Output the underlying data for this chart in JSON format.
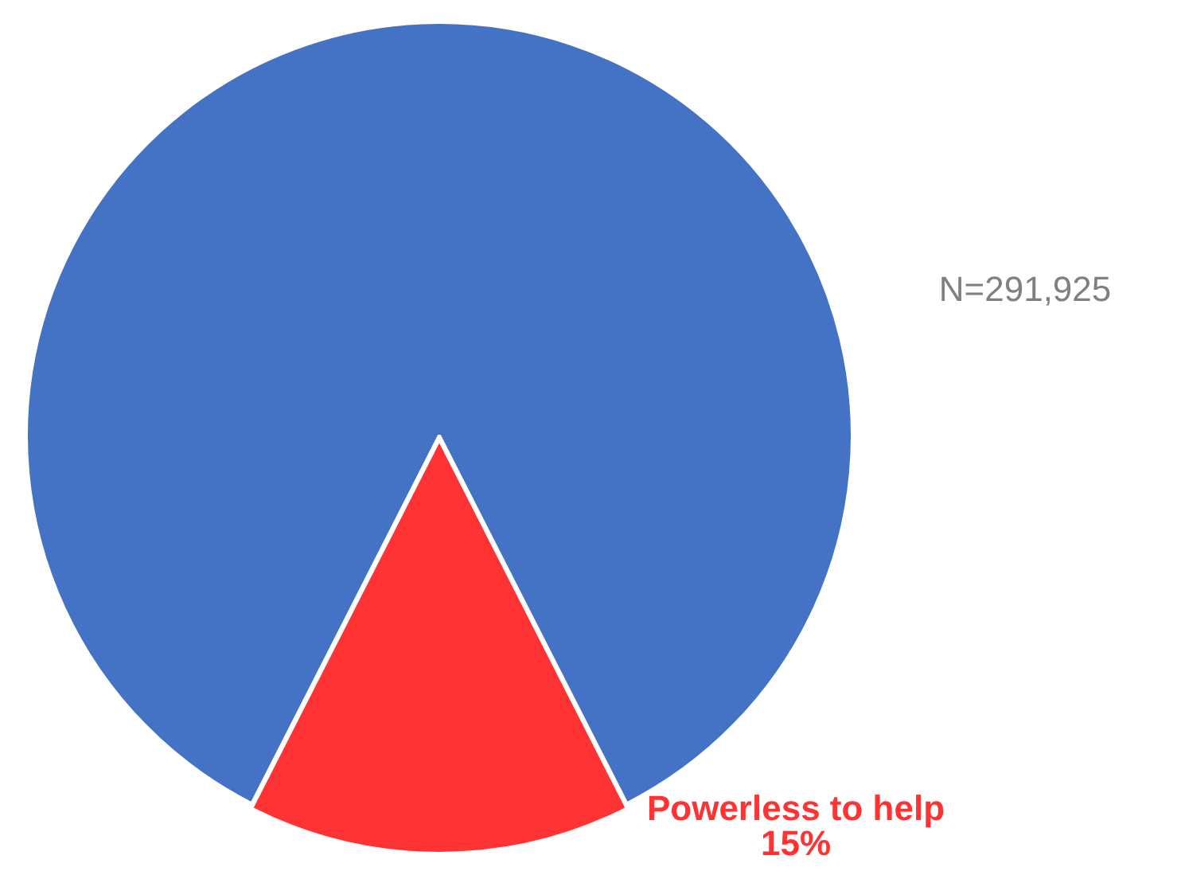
{
  "chart_data": {
    "type": "pie",
    "categories": [
      null,
      "Powerless to help"
    ],
    "values": [
      85,
      15
    ],
    "colors": [
      "#4472c4",
      "#ff3333"
    ],
    "value_labels": [
      null,
      "15%"
    ],
    "annotations": [
      "N=291,925"
    ],
    "legend": false
  }
}
